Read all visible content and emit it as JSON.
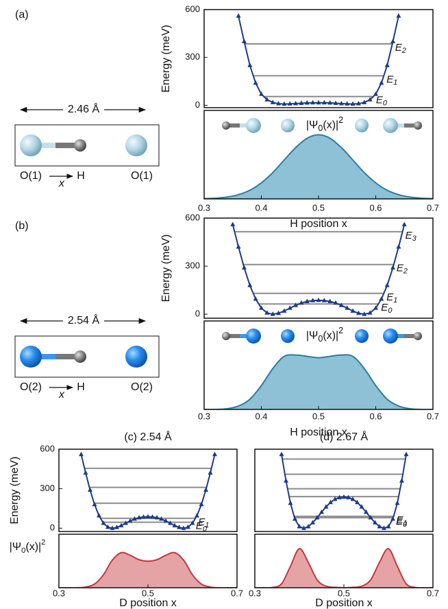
{
  "chart_data": [
    {
      "type": "line",
      "ylabel": "Energy (meV)",
      "xlim": [
        0.3,
        0.7
      ],
      "ylim": [
        -15,
        600
      ],
      "yticks": [
        0,
        300,
        600
      ],
      "x": [
        0.36,
        0.37,
        0.38,
        0.39,
        0.4,
        0.41,
        0.42,
        0.43,
        0.44,
        0.45,
        0.46,
        0.47,
        0.48,
        0.49,
        0.5,
        0.51,
        0.52,
        0.53,
        0.54,
        0.55,
        0.56,
        0.57,
        0.58,
        0.59,
        0.6,
        0.61,
        0.62,
        0.63,
        0.64
      ],
      "series": [
        {
          "color": "#1b3b87",
          "values": [
            560,
            400,
            250,
            140,
            70,
            35,
            18,
            10,
            8,
            9,
            11,
            13,
            15,
            16,
            16,
            16,
            15,
            13,
            11,
            9,
            8,
            10,
            18,
            35,
            70,
            140,
            250,
            400,
            560
          ]
        }
      ],
      "levels": [
        55,
        185,
        385
      ],
      "level_color": "#8c8c8c",
      "level_labels": [
        "E0",
        "E1",
        "E2"
      ]
    },
    {
      "type": "area",
      "label": [
        "|Ψ",
        "0",
        "(x)|",
        "2"
      ],
      "xlabel": "H position x",
      "xlim": [
        0.3,
        0.7
      ],
      "xticks": [
        0.3,
        0.4,
        0.5,
        0.6,
        0.7
      ],
      "ylim": [
        0,
        1.38
      ],
      "x": [
        0.3,
        0.32,
        0.34,
        0.36,
        0.38,
        0.4,
        0.42,
        0.44,
        0.46,
        0.48,
        0.5,
        0.52,
        0.54,
        0.56,
        0.58,
        0.6,
        0.62,
        0.64,
        0.66,
        0.68,
        0.7
      ],
      "values": [
        0.004,
        0.011,
        0.028,
        0.066,
        0.135,
        0.25,
        0.41,
        0.607,
        0.8,
        0.946,
        1,
        0.946,
        0.8,
        0.607,
        0.41,
        0.25,
        0.135,
        0.066,
        0.028,
        0.011,
        0.004
      ],
      "color": "#2b7ca3",
      "fill": "#8ec0d6"
    },
    {
      "type": "line",
      "ylabel": "Energy (meV)",
      "xlim": [
        0.3,
        0.7
      ],
      "ylim": [
        -25,
        600
      ],
      "yticks": [
        0,
        300,
        600
      ],
      "x": [
        0.35,
        0.36,
        0.37,
        0.38,
        0.39,
        0.4,
        0.41,
        0.42,
        0.43,
        0.44,
        0.45,
        0.46,
        0.47,
        0.48,
        0.49,
        0.5,
        0.51,
        0.52,
        0.53,
        0.54,
        0.55,
        0.56,
        0.57,
        0.58,
        0.59,
        0.6,
        0.61,
        0.62,
        0.63,
        0.64,
        0.65
      ],
      "series": [
        {
          "color": "#1b3b87",
          "values": [
            560,
            420,
            290,
            180,
            95,
            38,
            8,
            0,
            6,
            20,
            38,
            55,
            70,
            80,
            85,
            87,
            85,
            80,
            70,
            55,
            38,
            20,
            6,
            0,
            8,
            38,
            95,
            180,
            290,
            420,
            560
          ]
        }
      ],
      "levels": [
        64,
        130,
        310,
        515
      ],
      "level_color": "#8c8c8c",
      "level_labels": [
        "E0",
        "E1",
        "E2",
        "E3"
      ]
    },
    {
      "type": "area",
      "label": [
        "|Ψ",
        "0",
        "(x)|",
        "2"
      ],
      "xlabel": "H position x",
      "xlim": [
        0.3,
        0.7
      ],
      "xticks": [
        0.3,
        0.4,
        0.5,
        0.6,
        0.7
      ],
      "ylim": [
        0,
        1.3
      ],
      "x": [
        0.3,
        0.32,
        0.34,
        0.36,
        0.38,
        0.4,
        0.42,
        0.44,
        0.46,
        0.48,
        0.5,
        0.52,
        0.54,
        0.56,
        0.58,
        0.6,
        0.62,
        0.64,
        0.66,
        0.68,
        0.7
      ],
      "values": [
        0,
        0,
        0.01,
        0.05,
        0.15,
        0.35,
        0.6,
        0.78,
        0.8,
        0.78,
        0.76,
        0.78,
        0.8,
        0.78,
        0.6,
        0.35,
        0.15,
        0.05,
        0.01,
        0,
        0
      ],
      "color": "#2b7ca3",
      "fill": "#8ec0d6"
    },
    {
      "type": "line",
      "title": "(c) 2.54 Å",
      "ylabel": "Energy (meV)",
      "xlim": [
        0.3,
        0.7
      ],
      "ylim": [
        -25,
        600
      ],
      "yticks": [
        0,
        300,
        600
      ],
      "x": [
        0.35,
        0.36,
        0.37,
        0.38,
        0.39,
        0.4,
        0.41,
        0.42,
        0.43,
        0.44,
        0.45,
        0.46,
        0.47,
        0.48,
        0.49,
        0.5,
        0.51,
        0.52,
        0.53,
        0.54,
        0.55,
        0.56,
        0.57,
        0.58,
        0.59,
        0.6,
        0.61,
        0.62,
        0.63,
        0.64,
        0.65
      ],
      "series": [
        {
          "color": "#1b3b87",
          "values": [
            560,
            420,
            290,
            180,
            95,
            38,
            8,
            0,
            6,
            20,
            38,
            55,
            70,
            80,
            85,
            87,
            85,
            80,
            70,
            55,
            38,
            20,
            6,
            0,
            8,
            38,
            95,
            180,
            290,
            420,
            560
          ]
        }
      ],
      "levels": [
        45,
        75,
        190,
        310,
        455
      ],
      "level_color": "#8c8c8c",
      "level_labels": [
        "E0",
        "E1",
        null,
        null,
        null
      ]
    },
    {
      "type": "area",
      "ylabel": [
        "|Ψ",
        "0",
        "(x)|",
        "2"
      ],
      "xlabel": "D position x",
      "xlim": [
        0.3,
        0.7
      ],
      "xticks": [
        0.3,
        0.5,
        0.7
      ],
      "ylim": [
        0,
        1.45
      ],
      "x": [
        0.3,
        0.32,
        0.34,
        0.36,
        0.38,
        0.4,
        0.42,
        0.44,
        0.46,
        0.48,
        0.5,
        0.52,
        0.54,
        0.56,
        0.58,
        0.6,
        0.62,
        0.64,
        0.66,
        0.68,
        0.7
      ],
      "values": [
        0,
        0,
        0,
        0.02,
        0.1,
        0.35,
        0.75,
        0.95,
        0.88,
        0.76,
        0.72,
        0.76,
        0.88,
        0.95,
        0.75,
        0.35,
        0.1,
        0.02,
        0,
        0,
        0
      ],
      "color": "#c0393e",
      "fill": "#e6a3a6"
    },
    {
      "type": "line",
      "title": "(d) 2.67 Å",
      "xlim": [
        0.3,
        0.7
      ],
      "ylim": [
        -25,
        600
      ],
      "x": [
        0.36,
        0.37,
        0.38,
        0.39,
        0.4,
        0.41,
        0.42,
        0.43,
        0.44,
        0.45,
        0.46,
        0.47,
        0.48,
        0.49,
        0.5,
        0.51,
        0.52,
        0.53,
        0.54,
        0.55,
        0.56,
        0.57,
        0.58,
        0.59,
        0.6,
        0.61,
        0.62,
        0.63,
        0.64
      ],
      "series": [
        {
          "color": "#1b3b87",
          "values": [
            560,
            360,
            190,
            70,
            12,
            0,
            12,
            42,
            80,
            122,
            162,
            196,
            220,
            233,
            237,
            233,
            220,
            196,
            162,
            122,
            80,
            42,
            12,
            0,
            12,
            70,
            190,
            360,
            560
          ]
        }
      ],
      "levels": [
        80,
        90,
        240,
        300,
        410,
        525
      ],
      "level_color": "#8c8c8c",
      "level_labels": [
        "E0",
        "E1",
        null,
        null,
        null,
        null
      ]
    },
    {
      "type": "area",
      "xlabel": "D position x",
      "xlim": [
        0.3,
        0.7
      ],
      "xticks": [
        0.3,
        0.5,
        0.7
      ],
      "ylim": [
        0,
        1.37
      ],
      "x": [
        0.3,
        0.32,
        0.34,
        0.36,
        0.38,
        0.4,
        0.42,
        0.44,
        0.46,
        0.48,
        0.5,
        0.52,
        0.54,
        0.56,
        0.58,
        0.6,
        0.62,
        0.64,
        0.66,
        0.68,
        0.7
      ],
      "values": [
        0,
        0,
        0.01,
        0.1,
        0.55,
        1,
        0.65,
        0.2,
        0.04,
        0.01,
        0,
        0.01,
        0.04,
        0.2,
        0.65,
        1,
        0.55,
        0.1,
        0.01,
        0,
        0
      ],
      "color": "#c0393e",
      "fill": "#e6a3a6"
    }
  ],
  "diagrams": [
    {
      "panel": "(a)",
      "distance": "2.46 Å",
      "left": "O(1)",
      "coord": "x",
      "middle": "H",
      "right": "O(1)"
    },
    {
      "panel": "(b)",
      "distance": "2.54 Å",
      "left": "O(2)",
      "coord": "x",
      "middle": "H",
      "right": "O(2)"
    }
  ]
}
